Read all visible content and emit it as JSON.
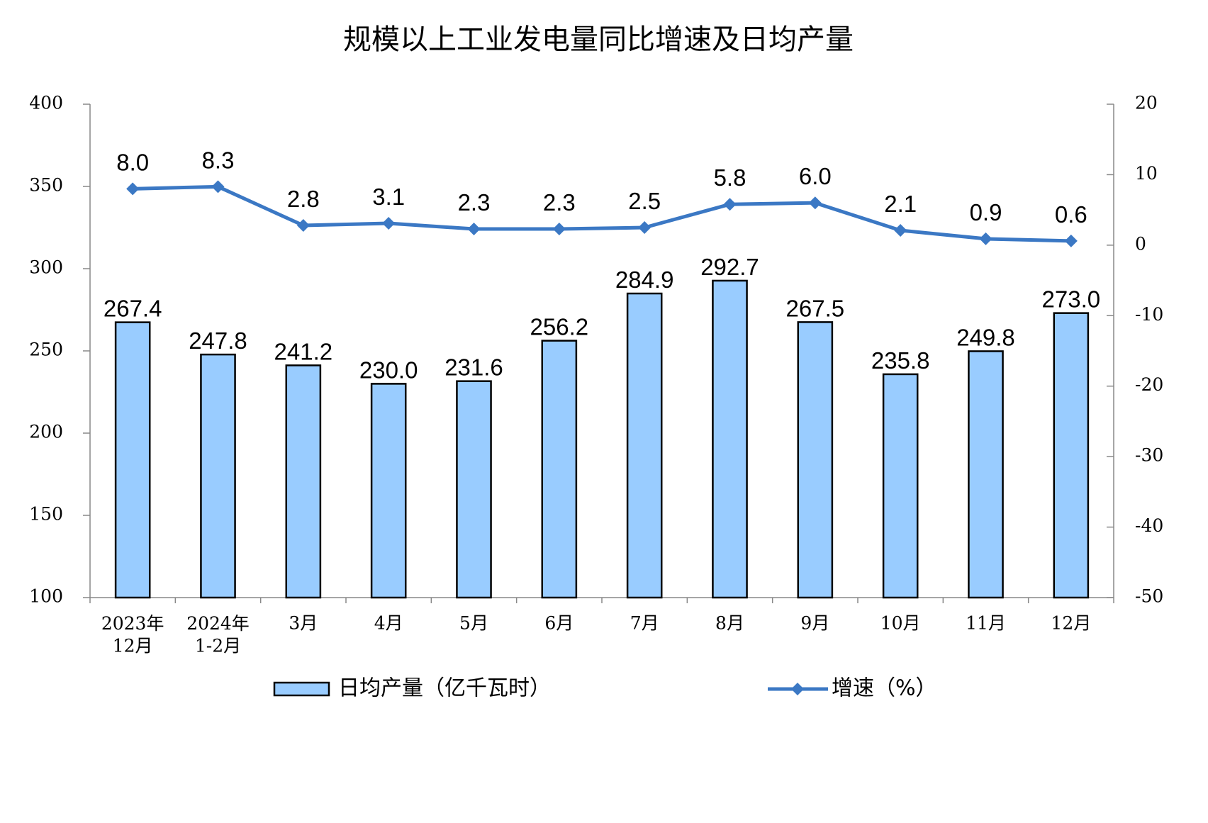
{
  "chart_data": {
    "type": "bar_line",
    "title": "规模以上工业发电量同比增速及日均产量",
    "categories": [
      "2023年\n12月",
      "2024年\n1-2月",
      "3月",
      "4月",
      "5月",
      "6月",
      "7月",
      "8月",
      "9月",
      "10月",
      "11月",
      "12月"
    ],
    "series": [
      {
        "name": "日均产量（亿千瓦时）",
        "type": "bar",
        "color": "#99ccff",
        "axis": "y",
        "values": [
          267.4,
          247.8,
          241.2,
          230.0,
          231.6,
          256.2,
          284.9,
          292.7,
          267.5,
          235.8,
          249.8,
          273.0
        ],
        "value_labels": [
          "267.4",
          "247.8",
          "241.2",
          "230.0",
          "231.6",
          "256.2",
          "284.9",
          "292.7",
          "267.5",
          "235.8",
          "249.8",
          "273.0"
        ]
      },
      {
        "name": "增速（%）",
        "type": "line",
        "color": "#3b78c4",
        "axis": "y2",
        "values": [
          8.0,
          8.3,
          2.8,
          3.1,
          2.3,
          2.3,
          2.5,
          5.8,
          6.0,
          2.1,
          0.9,
          0.6
        ],
        "value_labels": [
          "8.0",
          "8.3",
          "2.8",
          "3.1",
          "2.3",
          "2.3",
          "2.5",
          "5.8",
          "6.0",
          "2.1",
          "0.9",
          "0.6"
        ]
      }
    ],
    "ylim": [
      100,
      400
    ],
    "yticks": [
      100,
      150,
      200,
      250,
      300,
      350,
      400
    ],
    "y2lim": [
      -50,
      20
    ],
    "y2ticks": [
      -50,
      -40,
      -30,
      -20,
      -10,
      0,
      10,
      20
    ],
    "legend": "bottom"
  }
}
